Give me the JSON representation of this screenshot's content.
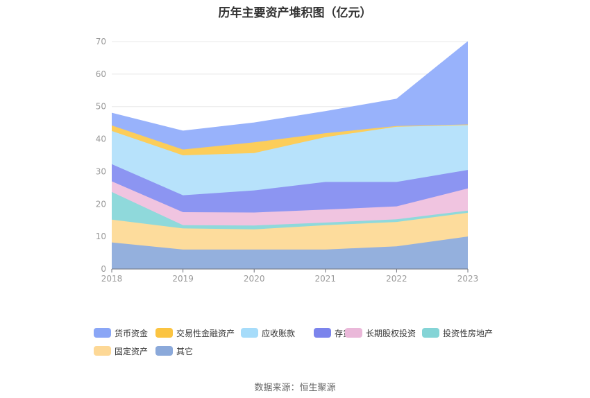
{
  "chart_data": {
    "type": "area",
    "stacked": true,
    "title": "历年主要资产堆积图（亿元）",
    "x": [
      "2018",
      "2019",
      "2020",
      "2021",
      "2022",
      "2023"
    ],
    "ylim": [
      0,
      70
    ],
    "yticks": [
      "0",
      "10",
      "20",
      "30",
      "40",
      "50",
      "60",
      "70"
    ],
    "grid": true,
    "legend_position": "bottom",
    "series": [
      {
        "name": "其它",
        "color": "#94b0dd",
        "values": [
          8.2,
          6.0,
          6.0,
          6.0,
          7.0,
          10.0
        ]
      },
      {
        "name": "固定资产",
        "color": "#fddc9c",
        "values": [
          7.0,
          6.5,
          6.2,
          7.5,
          7.5,
          7.3
        ]
      },
      {
        "name": "投资性房地产",
        "color": "#8fd9db",
        "values": [
          8.5,
          1.0,
          1.2,
          0.8,
          0.8,
          0.7
        ]
      },
      {
        "name": "长期股权投资",
        "color": "#f0c4e0",
        "values": [
          3.3,
          4.0,
          4.0,
          4.0,
          4.0,
          6.8
        ]
      },
      {
        "name": "存货",
        "color": "#8c95f2",
        "values": [
          5.3,
          5.2,
          6.8,
          8.5,
          7.5,
          5.7
        ]
      },
      {
        "name": "应收账款",
        "color": "#b7e2fb",
        "values": [
          10.2,
          12.3,
          11.5,
          13.8,
          17.0,
          13.8
        ]
      },
      {
        "name": "交易性金融资产",
        "color": "#fccd5a",
        "values": [
          1.7,
          1.8,
          3.3,
          1.2,
          0.2,
          0.2
        ]
      },
      {
        "name": "货币资金",
        "color": "#98b2fb",
        "values": [
          3.8,
          5.7,
          6.0,
          6.7,
          8.3,
          25.5
        ]
      }
    ]
  },
  "legend": [
    {
      "name": "货币资金",
      "color": "#8aa6f6"
    },
    {
      "name": "交易性金融资产",
      "color": "#fbc441"
    },
    {
      "name": "应收账款",
      "color": "#a6dcfa"
    },
    {
      "name": "存货",
      "color": "#7b84ec"
    },
    {
      "name": "长期股权投资",
      "color": "#eab8d9"
    },
    {
      "name": "投资性房地产",
      "color": "#84d4d6"
    },
    {
      "name": "固定资产",
      "color": "#fdd896"
    },
    {
      "name": "其它",
      "color": "#8ba9da"
    }
  ],
  "source": "数据来源：恒生聚源"
}
